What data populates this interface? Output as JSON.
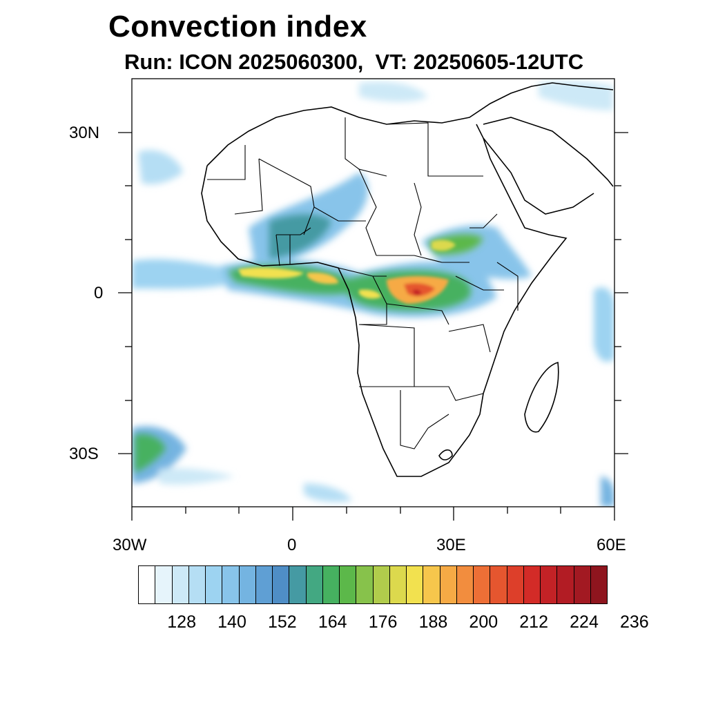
{
  "title": "Convection index",
  "subtitle": "Run: ICON 2025060300,  VT: 20250605-12UTC",
  "map": {
    "lon_range": [
      -30,
      60
    ],
    "lat_range": [
      -40,
      40
    ],
    "lon_labels": [
      "30W",
      "0",
      "30E",
      "60E"
    ],
    "lat_labels": [
      "30N",
      "0",
      "30S"
    ]
  },
  "legend": {
    "colors": [
      "#ffffff",
      "#e6f4fb",
      "#cde9f7",
      "#b5def4",
      "#9dd3f1",
      "#88c4ea",
      "#74b4e1",
      "#5f9fd4",
      "#4f8ec6",
      "#459aa3",
      "#43a882",
      "#46b160",
      "#5cb84a",
      "#87c24b",
      "#b1cc4c",
      "#dcd94d",
      "#f2e14f",
      "#f6c64c",
      "#f6aa45",
      "#f28d3e",
      "#ed6f36",
      "#e5562f",
      "#dd3f2a",
      "#d32b27",
      "#c32226",
      "#b21c24",
      "#a21922",
      "#8e151e"
    ],
    "labels": [
      "128",
      "140",
      "152",
      "164",
      "176",
      "188",
      "200",
      "212",
      "224",
      "236"
    ]
  }
}
